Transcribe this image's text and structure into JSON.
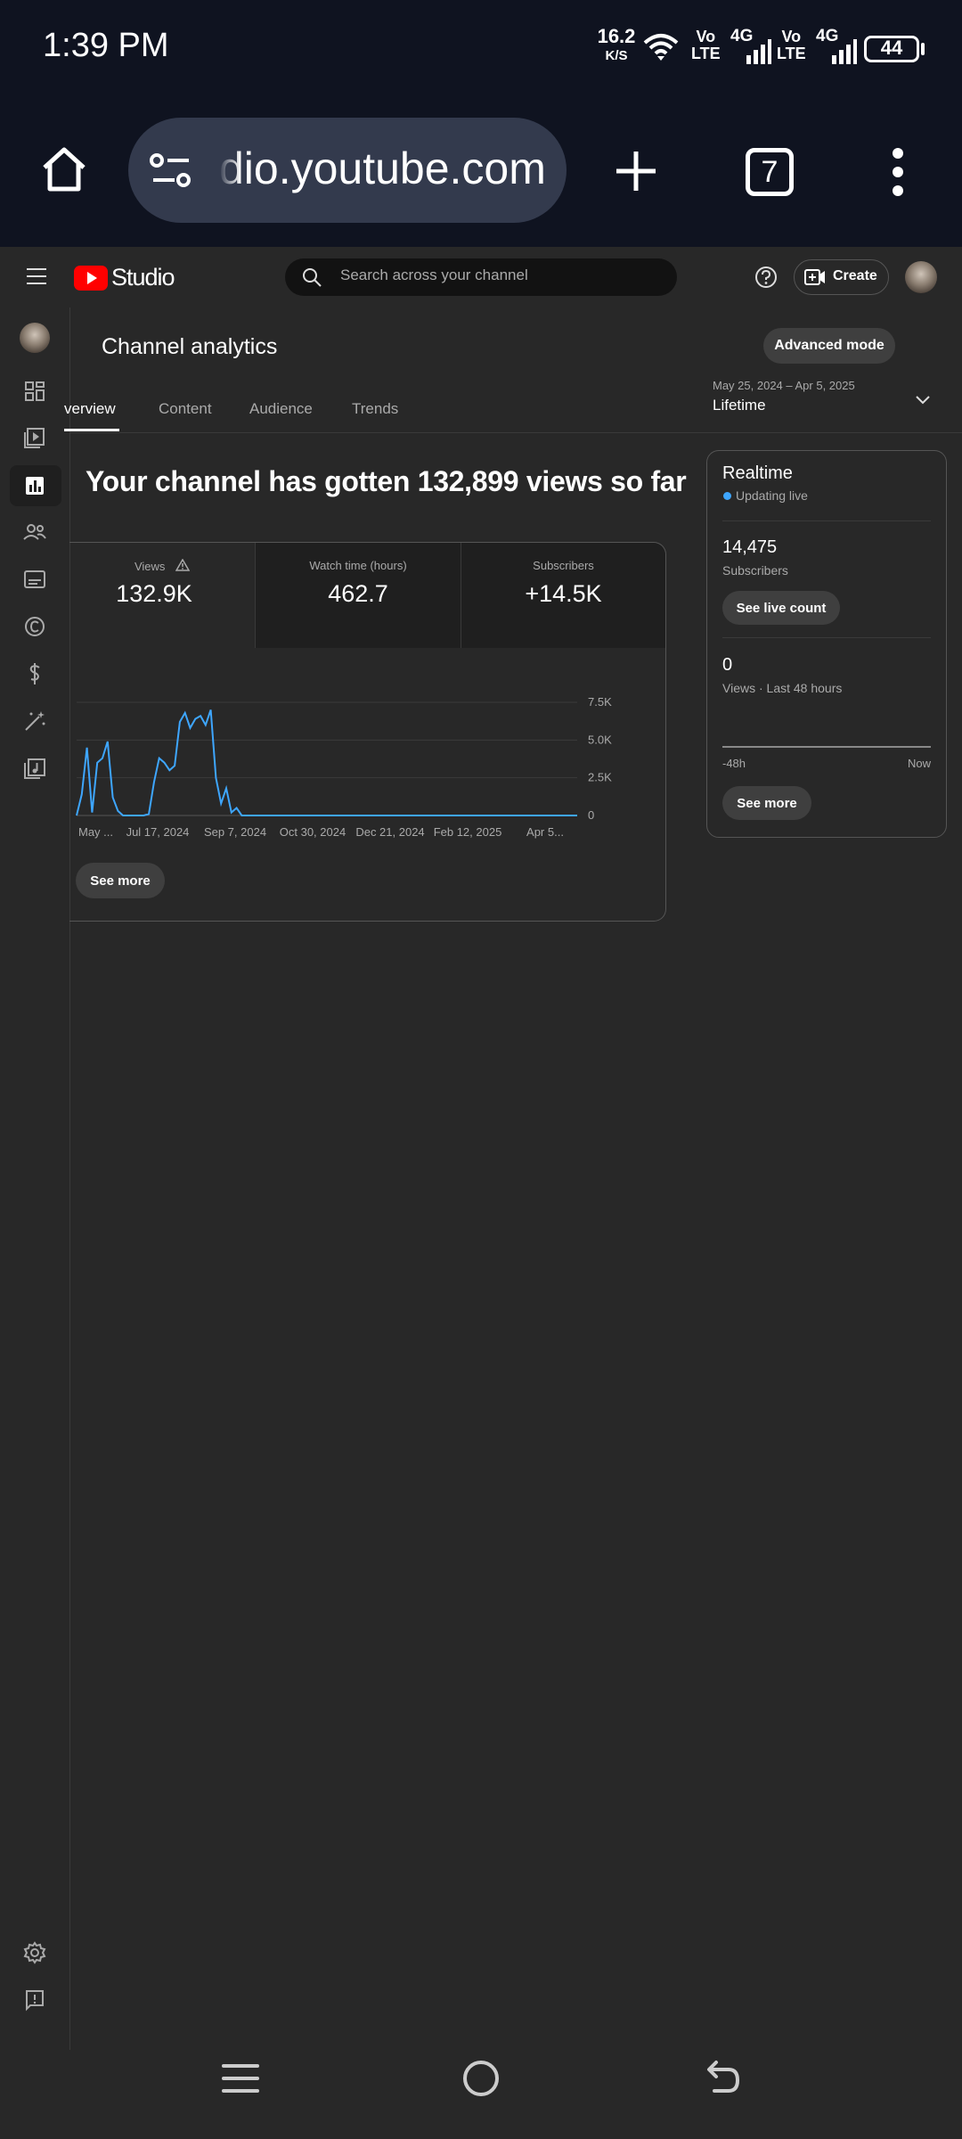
{
  "status_bar": {
    "time": "1:39 PM",
    "net_speed_value": "16.2",
    "net_speed_unit": "K/S",
    "sim1_top": "Vo",
    "sim1_bottom": "LTE",
    "sim1_gen": "4G",
    "sim2_top": "Vo",
    "sim2_bottom": "LTE",
    "sim2_gen": "4G",
    "battery": "44"
  },
  "browser": {
    "url": "dio.youtube.com",
    "tab_count": "7"
  },
  "yt_header": {
    "logo_text": "Studio",
    "search_placeholder": "Search across your channel",
    "create_label": "Create"
  },
  "page": {
    "title": "Channel analytics",
    "advanced_mode_label": "Advanced mode",
    "tabs": [
      {
        "label": "verview",
        "active": true
      },
      {
        "label": "Content",
        "active": false
      },
      {
        "label": "Audience",
        "active": false
      },
      {
        "label": "Trends",
        "active": false
      }
    ],
    "date_range": "May 25, 2024 – Apr 5, 2025",
    "period": "Lifetime",
    "headline": "Your channel has gotten 132,899 views so far"
  },
  "metrics": [
    {
      "label": "Views",
      "value": "132.9K",
      "warning_icon": "warning-triangle-icon"
    },
    {
      "label": "Watch time (hours)",
      "value": "462.7"
    },
    {
      "label": "Subscribers",
      "value": "+14.5K"
    }
  ],
  "chart_data": {
    "type": "line",
    "series": [
      {
        "values": [
          0,
          1400,
          4500,
          200,
          3500,
          3800,
          4900,
          1200,
          300,
          0,
          0,
          0,
          0,
          0,
          100,
          2200,
          3800,
          3500,
          3000,
          3300,
          6200,
          6800,
          5800,
          6400,
          6600,
          6000,
          7000,
          2500,
          800,
          1800,
          200,
          500,
          0,
          0,
          0,
          0,
          0,
          0,
          0,
          0,
          0,
          0,
          0,
          0,
          0,
          0,
          0,
          0,
          0,
          0,
          0,
          0,
          0,
          0,
          0,
          0,
          0,
          0,
          0,
          0,
          0,
          0,
          0,
          0,
          0,
          0,
          0,
          0,
          0,
          0,
          0,
          0,
          0,
          0,
          0,
          0,
          0,
          0,
          0,
          0,
          0,
          0,
          0,
          0,
          0,
          0,
          0,
          0,
          0,
          0,
          0,
          0,
          0,
          0,
          0,
          0,
          0,
          0
        ]
      }
    ],
    "x_tick_labels": [
      "May ...",
      "Jul 17, 2024",
      "Sep 7, 2024",
      "Oct 30, 2024",
      "Dec 21, 2024",
      "Feb 12, 2025",
      "Apr 5..."
    ],
    "y_tick_labels": [
      "7.5K",
      "5.0K",
      "2.5K",
      "0"
    ],
    "ylim": [
      0,
      7500
    ],
    "grid": true,
    "color": "#3ea6ff"
  },
  "overview_card": {
    "see_more_label": "See more"
  },
  "realtime": {
    "title": "Realtime",
    "status": "Updating live",
    "subscribers_value": "14,475",
    "subscribers_label": "Subscribers",
    "live_count_label": "See live count",
    "views_value": "0",
    "views_label": "Views · Last 48 hours",
    "axis_left": "-48h",
    "axis_right": "Now",
    "see_more_label": "See more"
  }
}
